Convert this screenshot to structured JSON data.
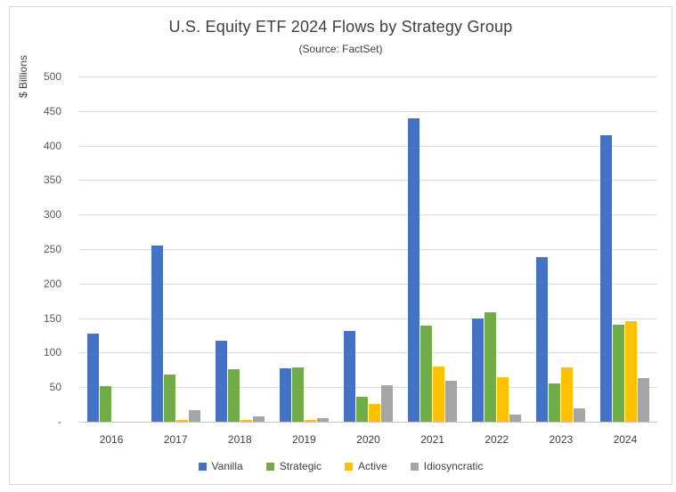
{
  "chart_data": {
    "type": "bar",
    "title": "U.S. Equity ETF 2024 Flows by Strategy Group",
    "subtitle": "(Source: FactSet)",
    "ylabel": "$ Billions",
    "xlabel": "",
    "ylim": [
      0,
      500
    ],
    "ytick_step": 50,
    "ytick_labels": [
      "-",
      "50",
      "100",
      "150",
      "200",
      "250",
      "300",
      "350",
      "400",
      "450",
      "500"
    ],
    "grid": true,
    "legend_position": "bottom",
    "categories": [
      "2016",
      "2017",
      "2018",
      "2019",
      "2020",
      "2021",
      "2022",
      "2023",
      "2024"
    ],
    "series": [
      {
        "name": "Vanilla",
        "color": "#4472C4",
        "values": [
          127,
          255,
          117,
          77,
          131,
          439,
          149,
          238,
          415
        ]
      },
      {
        "name": "Strategic",
        "color": "#70AD47",
        "values": [
          51,
          68,
          76,
          79,
          36,
          139,
          158,
          56,
          140
        ]
      },
      {
        "name": "Active",
        "color": "#FFC000",
        "values": [
          0,
          3,
          3,
          3,
          26,
          80,
          64,
          79,
          146
        ]
      },
      {
        "name": "Idiosyncratic",
        "color": "#A5A5A5",
        "values": [
          0,
          17,
          8,
          5,
          53,
          59,
          10,
          20,
          63
        ]
      }
    ]
  },
  "colors": {
    "gridline": "#d9d9d9",
    "axis_line": "#c6c6c6",
    "title_text": "#404040",
    "tick_text": "#595959",
    "frame_border": "#d8d8d8"
  }
}
